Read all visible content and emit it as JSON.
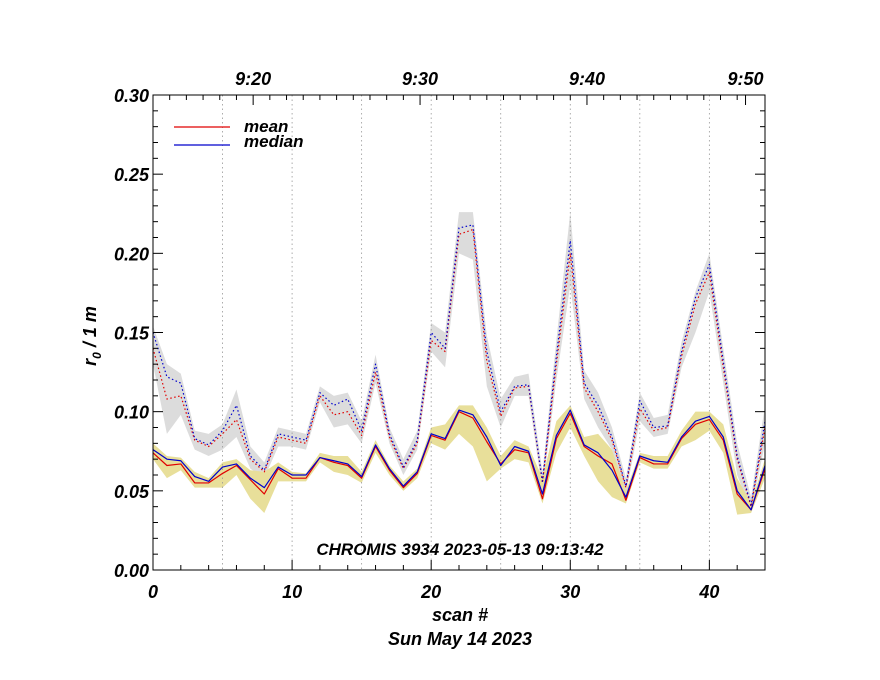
{
  "chart_data": {
    "type": "line",
    "title": "",
    "annotation": "CHROMIS 3934 2023-05-13 09:13:42",
    "xlabel": "scan #",
    "xlabel_date": "Sun May 14 2023",
    "ylabel_main": "r",
    "ylabel_sub": "0",
    "ylabel_rest": " / 1 m",
    "xlim": [
      0,
      44
    ],
    "ylim": [
      0.0,
      0.3
    ],
    "x_ticks": [
      0,
      10,
      20,
      30,
      40
    ],
    "x_tick_labels": [
      "0",
      "10",
      "20",
      "30",
      "40"
    ],
    "y_ticks": [
      0.0,
      0.05,
      0.1,
      0.15,
      0.2,
      0.25,
      0.3
    ],
    "y_tick_labels": [
      "0.00",
      "0.05",
      "0.10",
      "0.15",
      "0.20",
      "0.25",
      "0.30"
    ],
    "top_axis_ticks": [
      7.2,
      19.2,
      31.2,
      42.6
    ],
    "top_axis_labels": [
      "9:20",
      "9:30",
      "9:40",
      "9:50"
    ],
    "vertical_gridlines": [
      5,
      10,
      15,
      20,
      25,
      30,
      35,
      40
    ],
    "colors": {
      "mean": "#e00000",
      "median": "#0000cc",
      "lower_band": "#e8df9a",
      "upper_band": "#dcdcdc",
      "grid": "#999999"
    },
    "legend": [
      {
        "name": "mean",
        "color": "#e00000"
      },
      {
        "name": "median",
        "color": "#0000cc"
      }
    ],
    "legend_position": "top-left",
    "x": [
      0,
      1,
      2,
      3,
      4,
      5,
      6,
      7,
      8,
      9,
      10,
      11,
      12,
      13,
      14,
      15,
      16,
      17,
      18,
      19,
      20,
      21,
      22,
      23,
      24,
      25,
      26,
      27,
      28,
      29,
      30,
      31,
      32,
      33,
      34,
      35,
      36,
      37,
      38,
      39,
      40,
      41,
      42,
      43,
      44
    ],
    "series": [
      {
        "name": "mean (lower)",
        "color": "#e00000",
        "style": "solid",
        "values": [
          0.074,
          0.066,
          0.067,
          0.055,
          0.055,
          0.061,
          0.066,
          0.057,
          0.048,
          0.064,
          0.058,
          0.058,
          0.071,
          0.068,
          0.066,
          0.058,
          0.078,
          0.063,
          0.052,
          0.061,
          0.085,
          0.082,
          0.1,
          0.096,
          0.081,
          0.067,
          0.076,
          0.074,
          0.045,
          0.083,
          0.099,
          0.078,
          0.072,
          0.067,
          0.044,
          0.071,
          0.067,
          0.067,
          0.083,
          0.092,
          0.095,
          0.082,
          0.048,
          0.038,
          0.064
        ]
      },
      {
        "name": "median (lower)",
        "color": "#0000cc",
        "style": "solid",
        "values": [
          0.076,
          0.07,
          0.069,
          0.059,
          0.056,
          0.065,
          0.067,
          0.058,
          0.052,
          0.065,
          0.06,
          0.06,
          0.071,
          0.069,
          0.067,
          0.059,
          0.079,
          0.064,
          0.053,
          0.062,
          0.086,
          0.083,
          0.101,
          0.098,
          0.084,
          0.066,
          0.078,
          0.075,
          0.048,
          0.085,
          0.101,
          0.079,
          0.074,
          0.063,
          0.046,
          0.072,
          0.069,
          0.068,
          0.084,
          0.094,
          0.097,
          0.084,
          0.05,
          0.038,
          0.066
        ]
      },
      {
        "name": "mean (upper)",
        "color": "#e00000",
        "style": "dotted",
        "values": [
          0.14,
          0.108,
          0.11,
          0.082,
          0.078,
          0.086,
          0.095,
          0.07,
          0.062,
          0.084,
          0.082,
          0.08,
          0.11,
          0.098,
          0.1,
          0.085,
          0.125,
          0.084,
          0.064,
          0.08,
          0.145,
          0.138,
          0.212,
          0.215,
          0.132,
          0.097,
          0.115,
          0.116,
          0.055,
          0.13,
          0.2,
          0.115,
          0.1,
          0.082,
          0.052,
          0.102,
          0.088,
          0.09,
          0.135,
          0.168,
          0.188,
          0.128,
          0.07,
          0.04,
          0.09
        ]
      },
      {
        "name": "median (upper)",
        "color": "#0000cc",
        "style": "dotted",
        "values": [
          0.15,
          0.122,
          0.118,
          0.083,
          0.079,
          0.088,
          0.104,
          0.072,
          0.063,
          0.086,
          0.084,
          0.082,
          0.112,
          0.104,
          0.108,
          0.088,
          0.13,
          0.086,
          0.065,
          0.082,
          0.15,
          0.14,
          0.216,
          0.218,
          0.138,
          0.1,
          0.116,
          0.117,
          0.056,
          0.135,
          0.208,
          0.118,
          0.104,
          0.084,
          0.053,
          0.107,
          0.09,
          0.091,
          0.138,
          0.172,
          0.193,
          0.132,
          0.072,
          0.041,
          0.094
        ]
      }
    ],
    "bands": [
      {
        "name": "lower band",
        "color": "#e8df9a",
        "low": [
          0.07,
          0.058,
          0.063,
          0.052,
          0.052,
          0.052,
          0.06,
          0.045,
          0.036,
          0.056,
          0.056,
          0.056,
          0.068,
          0.062,
          0.06,
          0.055,
          0.074,
          0.06,
          0.05,
          0.058,
          0.08,
          0.076,
          0.086,
          0.078,
          0.056,
          0.064,
          0.07,
          0.068,
          0.042,
          0.074,
          0.09,
          0.072,
          0.056,
          0.046,
          0.042,
          0.068,
          0.064,
          0.064,
          0.078,
          0.082,
          0.088,
          0.074,
          0.035,
          0.036,
          0.058
        ],
        "high": [
          0.08,
          0.072,
          0.071,
          0.062,
          0.058,
          0.068,
          0.07,
          0.063,
          0.062,
          0.068,
          0.062,
          0.061,
          0.074,
          0.072,
          0.072,
          0.062,
          0.082,
          0.066,
          0.056,
          0.064,
          0.09,
          0.092,
          0.104,
          0.104,
          0.09,
          0.072,
          0.082,
          0.078,
          0.058,
          0.094,
          0.104,
          0.084,
          0.086,
          0.076,
          0.05,
          0.074,
          0.072,
          0.072,
          0.088,
          0.1,
          0.1,
          0.092,
          0.058,
          0.042,
          0.07
        ]
      },
      {
        "name": "upper band",
        "color": "#dcdcdc",
        "low": [
          0.13,
          0.086,
          0.098,
          0.076,
          0.072,
          0.076,
          0.084,
          0.064,
          0.058,
          0.078,
          0.078,
          0.076,
          0.106,
          0.09,
          0.092,
          0.08,
          0.118,
          0.08,
          0.06,
          0.076,
          0.138,
          0.128,
          0.2,
          0.196,
          0.116,
          0.09,
          0.11,
          0.11,
          0.05,
          0.12,
          0.18,
          0.108,
          0.09,
          0.076,
          0.048,
          0.094,
          0.084,
          0.086,
          0.128,
          0.15,
          0.176,
          0.118,
          0.06,
          0.037,
          0.08
        ],
        "high": [
          0.154,
          0.13,
          0.124,
          0.088,
          0.086,
          0.092,
          0.114,
          0.078,
          0.068,
          0.09,
          0.088,
          0.086,
          0.116,
          0.11,
          0.112,
          0.094,
          0.136,
          0.09,
          0.07,
          0.088,
          0.156,
          0.15,
          0.226,
          0.226,
          0.148,
          0.108,
          0.122,
          0.124,
          0.062,
          0.145,
          0.226,
          0.126,
          0.112,
          0.09,
          0.058,
          0.112,
          0.096,
          0.098,
          0.144,
          0.176,
          0.2,
          0.14,
          0.08,
          0.046,
          0.104
        ]
      }
    ]
  }
}
